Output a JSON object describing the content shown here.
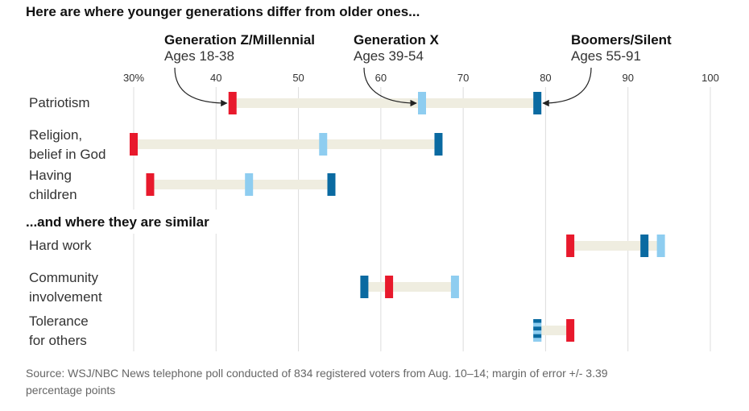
{
  "chart_data": {
    "type": "dot-range",
    "title": "Here are where younger generations differ from older ones...",
    "section_title_2": "...and where they are similar",
    "source": "Source: WSJ/NBC News telephone poll conducted of 834 registered voters from Aug. 10–14; margin of error +/- 3.39 percentage points",
    "x_range": [
      30,
      100
    ],
    "ticks": [
      {
        "value": 30,
        "label": "30%"
      },
      {
        "value": 40,
        "label": "40"
      },
      {
        "value": 50,
        "label": "50"
      },
      {
        "value": 60,
        "label": "60"
      },
      {
        "value": 70,
        "label": "70"
      },
      {
        "value": 80,
        "label": "80"
      },
      {
        "value": 90,
        "label": "90"
      },
      {
        "value": 100,
        "label": "100"
      }
    ],
    "series": [
      {
        "key": "genz",
        "name": "Generation Z/Millennial",
        "ages": "Ages 18-38",
        "color": "#e8192c"
      },
      {
        "key": "genx",
        "name": "Generation X",
        "ages": "Ages 39-54",
        "color": "#8ecdf0"
      },
      {
        "key": "boomers",
        "name": "Boomers/Silent",
        "ages": "Ages 55-91",
        "color": "#0a6aa1"
      }
    ],
    "rows": [
      {
        "label": [
          "Patriotism"
        ],
        "genz": 42,
        "genx": 65,
        "boomers": 79
      },
      {
        "label": [
          "Religion,",
          "belief in God"
        ],
        "genz": 30,
        "genx": 53,
        "boomers": 67
      },
      {
        "label": [
          "Having",
          "children"
        ],
        "genz": 32,
        "genx": 44,
        "boomers": 54
      },
      {
        "label": [
          "Hard work"
        ],
        "genz": 83,
        "genx": 94,
        "boomers": 92
      },
      {
        "label": [
          "Community",
          "involvement"
        ],
        "genz": 61,
        "genx": 69,
        "boomers": 58
      },
      {
        "label": [
          "Tolerance",
          "for others"
        ],
        "genz": 83,
        "genx": 79,
        "boomers": 79
      }
    ],
    "colors": {
      "range_bar": "#efede0",
      "grid": "#dddddd"
    }
  }
}
